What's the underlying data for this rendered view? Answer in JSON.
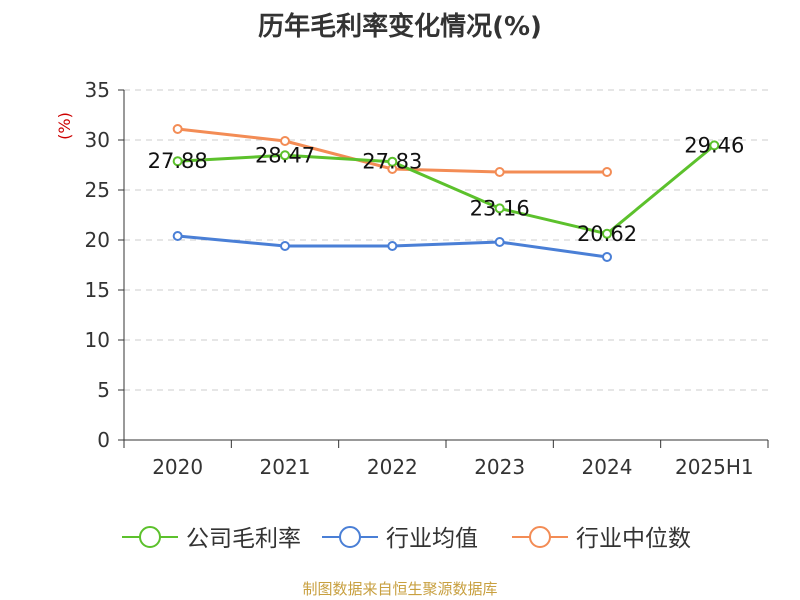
{
  "chart_data": {
    "type": "line",
    "title": "历年毛利率变化情况(%)",
    "ylabel": "(%)",
    "categories": [
      "2020",
      "2021",
      "2022",
      "2023",
      "2024",
      "2025H1"
    ],
    "ylim": [
      0,
      35
    ],
    "yticks": [
      0,
      5,
      10,
      15,
      20,
      25,
      30,
      35
    ],
    "grid": true,
    "legend_position": "bottom",
    "series": [
      {
        "name": "公司毛利率",
        "color": "#5cc12c",
        "values": [
          27.88,
          28.47,
          27.83,
          23.16,
          20.62,
          29.46
        ],
        "labels": [
          "27.88",
          "28.47",
          "27.83",
          "23.16",
          "20.62",
          "29.46"
        ]
      },
      {
        "name": "行业均值",
        "color": "#4a7fd6",
        "values": [
          20.4,
          19.4,
          19.4,
          19.8,
          18.3,
          null
        ]
      },
      {
        "name": "行业中位数",
        "color": "#f38c55",
        "values": [
          31.1,
          29.9,
          27.1,
          26.8,
          26.8,
          null
        ]
      }
    ]
  },
  "source": "制图数据来自恒生聚源数据库"
}
